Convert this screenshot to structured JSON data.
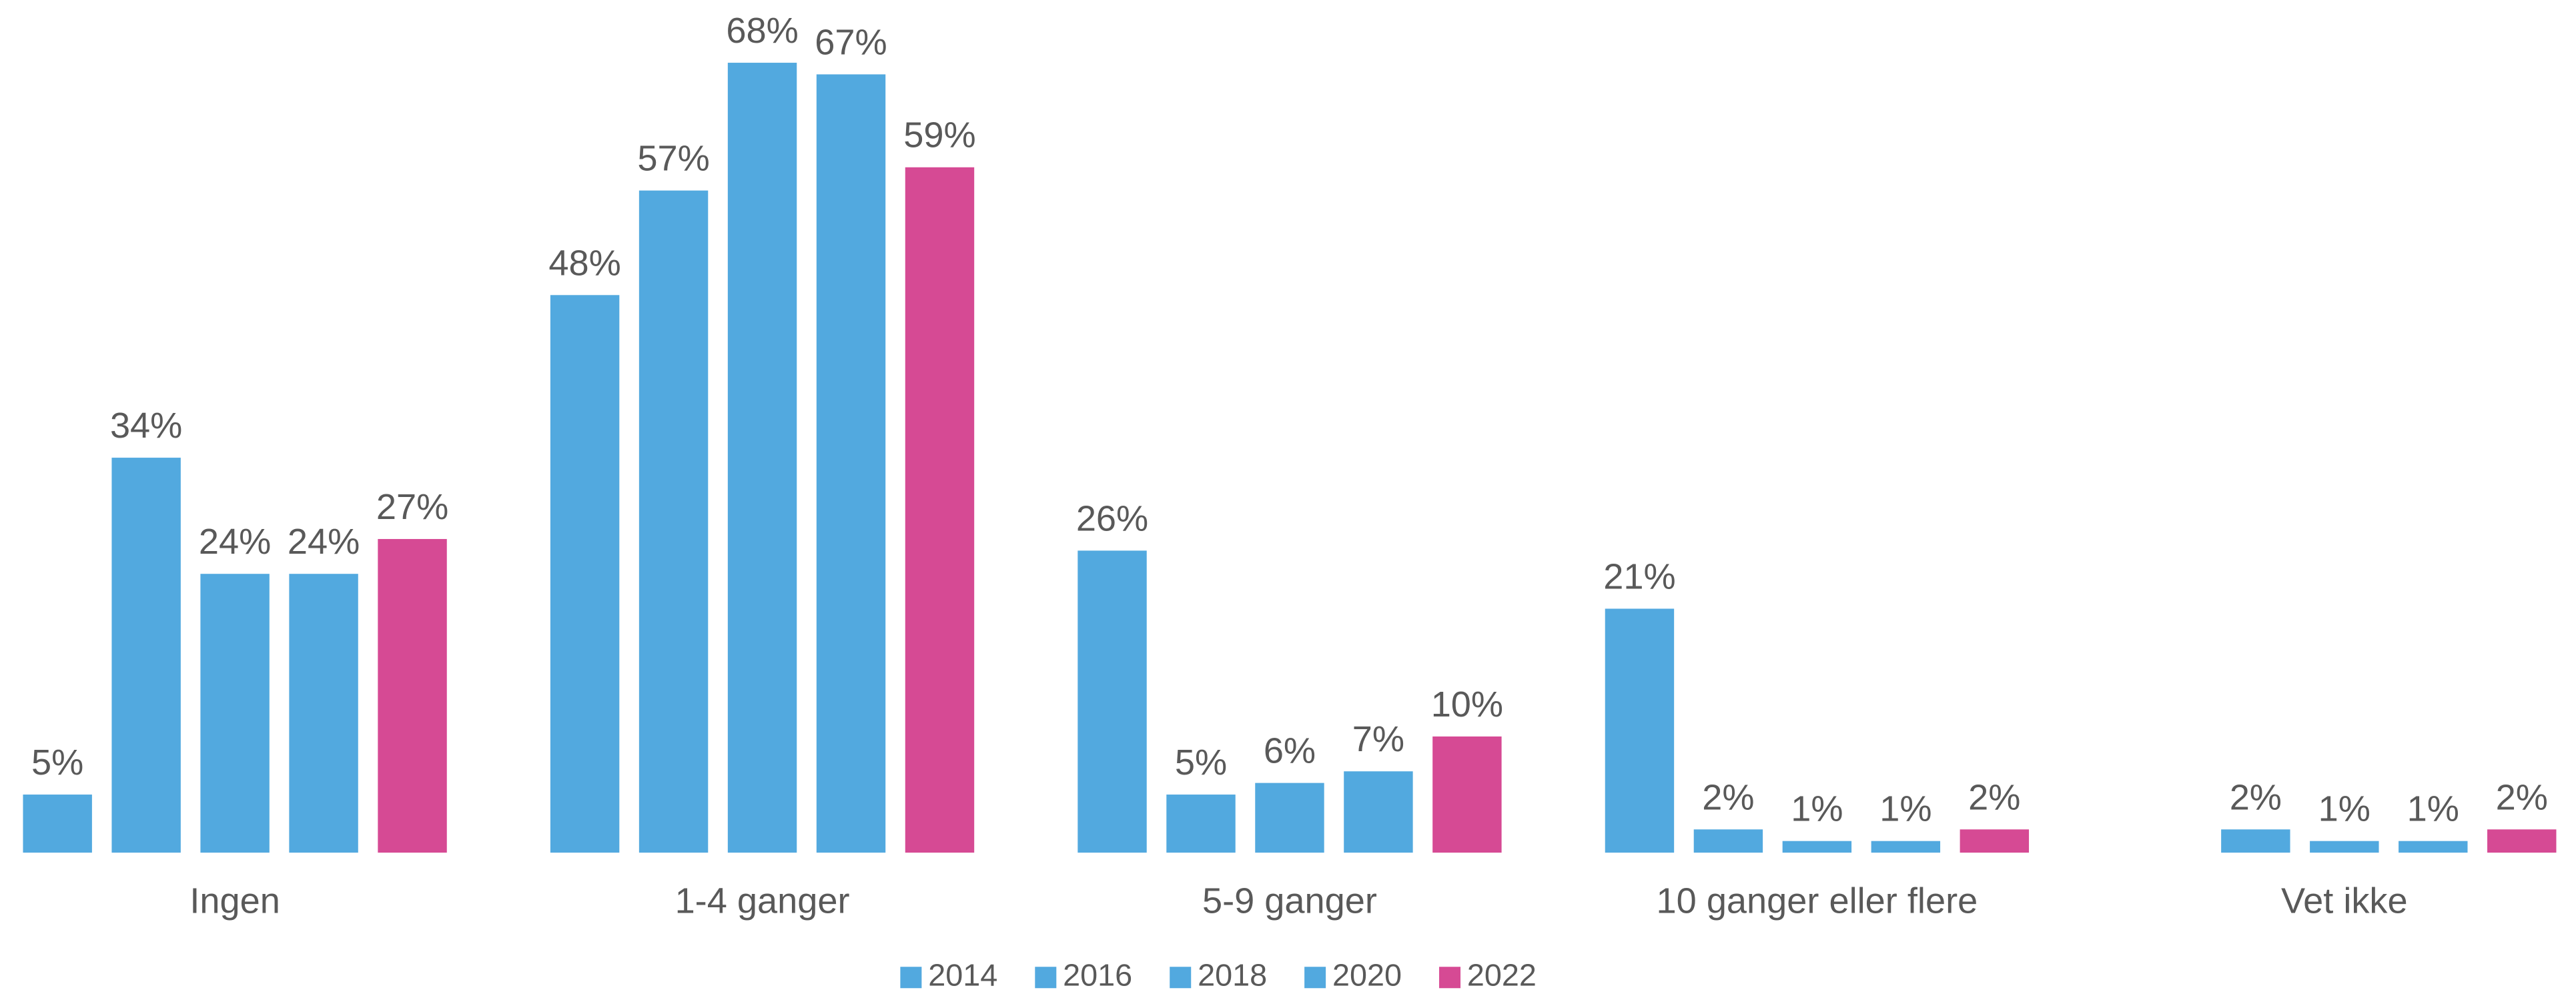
{
  "chart_data": {
    "type": "bar",
    "categories": [
      "Ingen",
      "1-4 ganger",
      "5-9 ganger",
      "10 ganger eller flere",
      "Vet ikke"
    ],
    "series": [
      {
        "name": "2014",
        "color": "#52a9df",
        "values": [
          5,
          48,
          26,
          21,
          null
        ],
        "value_labels": [
          "5%",
          "48%",
          "26%",
          "21%",
          null
        ]
      },
      {
        "name": "2016",
        "color": "#52a9df",
        "values": [
          34,
          57,
          5,
          2,
          2
        ],
        "value_labels": [
          "34%",
          "57%",
          "5%",
          "2%",
          "2%"
        ]
      },
      {
        "name": "2018",
        "color": "#52a9df",
        "values": [
          24,
          68,
          6,
          1,
          1
        ],
        "value_labels": [
          "24%",
          "68%",
          "6%",
          "1%",
          "1%"
        ]
      },
      {
        "name": "2020",
        "color": "#52a9df",
        "values": [
          24,
          67,
          7,
          1,
          1
        ],
        "value_labels": [
          "24%",
          "67%",
          "7%",
          "1%",
          "1%"
        ]
      },
      {
        "name": "2022",
        "color": "#d64a94",
        "values": [
          27,
          59,
          10,
          2,
          2
        ],
        "value_labels": [
          "27%",
          "59%",
          "10%",
          "2%",
          "2%"
        ]
      }
    ],
    "ylim": [
      0,
      70
    ],
    "legend": "bottom"
  }
}
